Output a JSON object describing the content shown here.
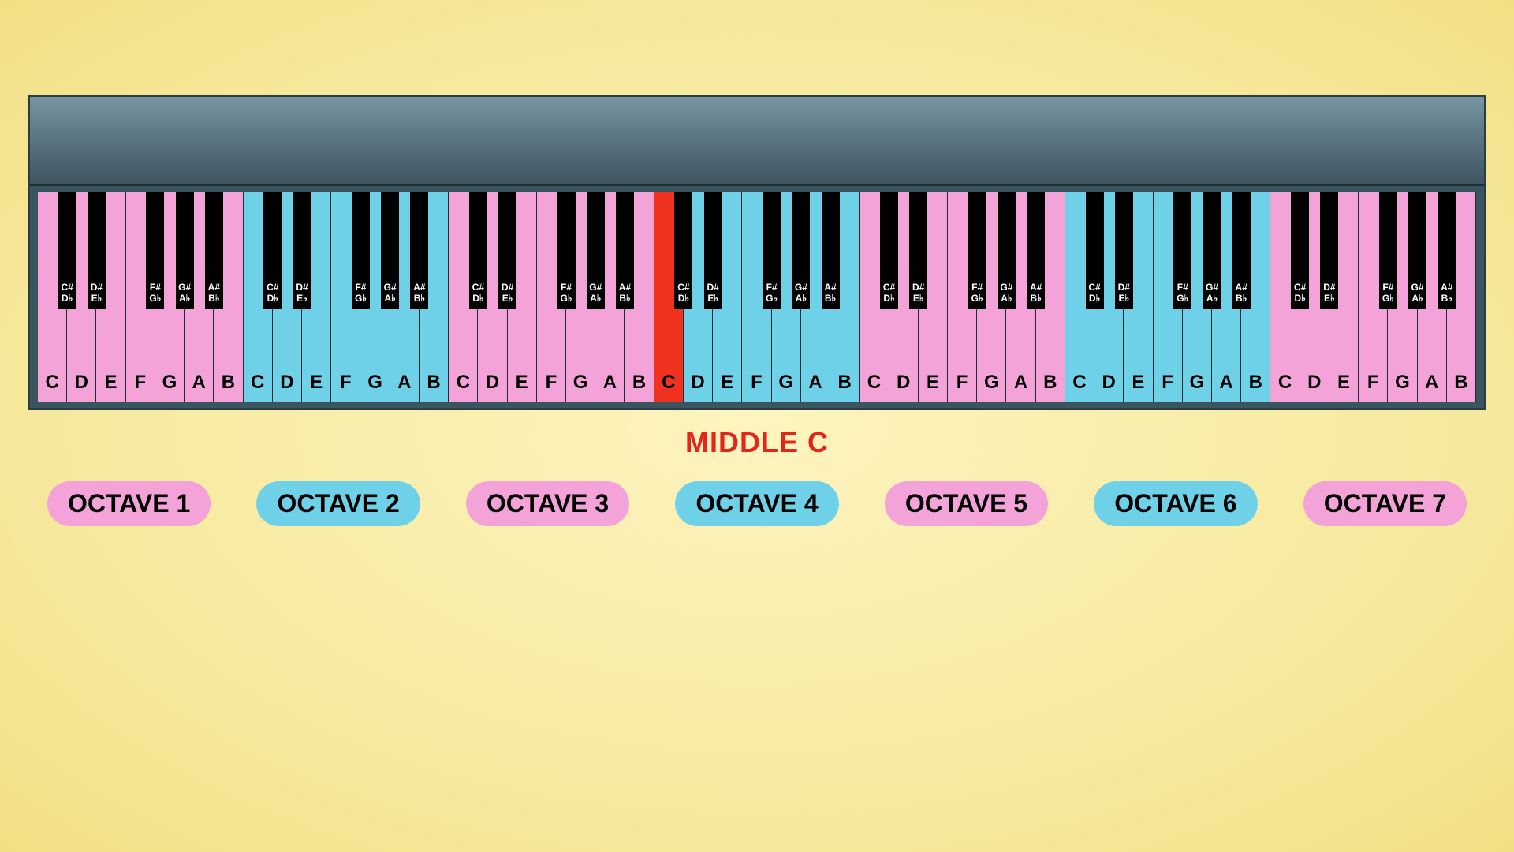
{
  "type": "infographic",
  "background": {
    "center": "#fdf4c0",
    "edge": "#f1df85"
  },
  "piano": {
    "frame_color": "#3a5560",
    "frame_border": "#2a3d45",
    "top_gradient": [
      "#7995a0",
      "#5f7a86",
      "#405560"
    ],
    "keybed_bg": "#2a3d45",
    "white_key_count": 49,
    "white_key_border": "#1f2e34",
    "black_key_color": "#000000",
    "white_note_names": [
      "C",
      "D",
      "E",
      "F",
      "G",
      "A",
      "B"
    ],
    "octave_colors": {
      "pink": "#f3a3d8",
      "blue": "#6fd1e8",
      "red": "#f0331f"
    },
    "octave_pattern": [
      "pink",
      "blue",
      "pink",
      "blue",
      "pink",
      "blue",
      "pink"
    ],
    "middle_c_index": 21,
    "black_keys_per_octave": [
      {
        "after": 0,
        "sharp": "C#",
        "flat": "D♭"
      },
      {
        "after": 1,
        "sharp": "D#",
        "flat": "E♭"
      },
      {
        "after": 3,
        "sharp": "F#",
        "flat": "G♭"
      },
      {
        "after": 4,
        "sharp": "G#",
        "flat": "A♭"
      },
      {
        "after": 5,
        "sharp": "A#",
        "flat": "B♭"
      }
    ],
    "black_key_width_ratio": 0.62,
    "white_label_fontsize": 24,
    "black_label_fontsize": 12
  },
  "middle_c": {
    "text": "MIDDLE C",
    "color": "#e4261a",
    "fontsize": 36
  },
  "octave_pills": [
    {
      "label": "OCTAVE 1",
      "bg": "#f3a3d8"
    },
    {
      "label": "OCTAVE 2",
      "bg": "#6fd1e8"
    },
    {
      "label": "OCTAVE 3",
      "bg": "#f3a3d8"
    },
    {
      "label": "OCTAVE 4",
      "bg": "#6fd1e8"
    },
    {
      "label": "OCTAVE 5",
      "bg": "#f3a3d8"
    },
    {
      "label": "OCTAVE 6",
      "bg": "#6fd1e8"
    },
    {
      "label": "OCTAVE 7",
      "bg": "#f3a3d8"
    }
  ],
  "pill_fontsize": 32
}
